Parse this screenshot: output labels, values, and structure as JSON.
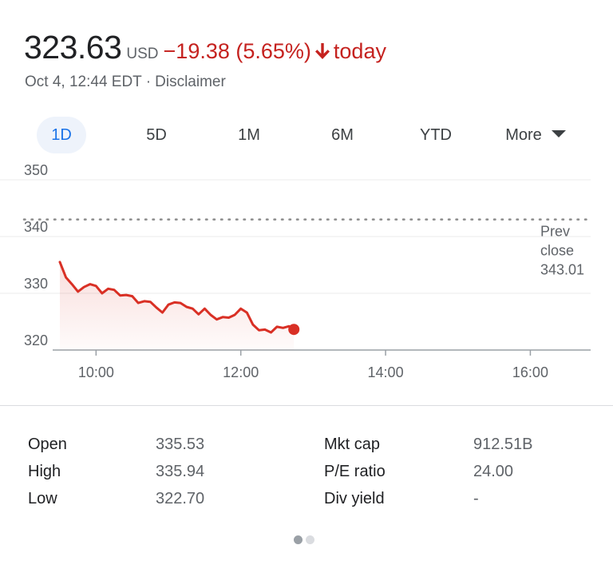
{
  "quote": {
    "price": "323.63",
    "currency": "USD",
    "change": "−19.38 (5.65%)",
    "today_label": "today",
    "timestamp": "Oct 4, 12:44 EDT",
    "separator": "·",
    "disclaimer": "Disclaimer"
  },
  "colors": {
    "negative": "#c5221f",
    "line": "#d93025",
    "active_tab": "#1a73e8"
  },
  "tabs": [
    "1D",
    "5D",
    "1M",
    "6M",
    "YTD",
    "More"
  ],
  "active_tab": "1D",
  "chart_data": {
    "type": "line",
    "title": "",
    "xlabel": "",
    "ylabel": "",
    "x_ticks": [
      "10:00",
      "12:00",
      "14:00",
      "16:00"
    ],
    "y_ticks": [
      320,
      330,
      340,
      350
    ],
    "ylim": [
      320,
      350
    ],
    "xlim": [
      "9:30",
      "16:50"
    ],
    "grid": true,
    "prev_close": {
      "label_lines": [
        "Prev",
        "close",
        "343.01"
      ],
      "value": 343.01
    },
    "series": [
      {
        "x": [
          "9:30",
          "9:35",
          "9:40",
          "9:45",
          "9:50",
          "9:55",
          "10:00",
          "10:05",
          "10:10",
          "10:15",
          "10:20",
          "10:25",
          "10:30",
          "10:35",
          "10:40",
          "10:45",
          "10:50",
          "10:55",
          "11:00",
          "11:05",
          "11:10",
          "11:15",
          "11:20",
          "11:25",
          "11:30",
          "11:35",
          "11:40",
          "11:45",
          "11:50",
          "11:55",
          "12:00",
          "12:05",
          "12:10",
          "12:15",
          "12:20",
          "12:25",
          "12:30",
          "12:35",
          "12:40",
          "12:44"
        ],
        "values": [
          335.5,
          332.8,
          331.6,
          330.3,
          331.1,
          331.6,
          331.3,
          330.0,
          330.8,
          330.6,
          329.6,
          329.7,
          329.5,
          328.3,
          328.6,
          328.5,
          327.5,
          326.6,
          328.0,
          328.4,
          328.3,
          327.6,
          327.3,
          326.3,
          327.3,
          326.2,
          325.4,
          325.8,
          325.7,
          326.2,
          327.3,
          326.6,
          324.5,
          323.5,
          323.6,
          323.1,
          324.1,
          323.9,
          324.2,
          323.63
        ]
      }
    ]
  },
  "stats": [
    {
      "label": "Open",
      "value": "335.53"
    },
    {
      "label": "High",
      "value": "335.94"
    },
    {
      "label": "Low",
      "value": "322.70"
    },
    {
      "label": "Mkt cap",
      "value": "912.51B"
    },
    {
      "label": "P/E ratio",
      "value": "24.00"
    },
    {
      "label": "Div yield",
      "value": "-"
    }
  ],
  "pagination": {
    "pages": 2,
    "current": 1
  }
}
